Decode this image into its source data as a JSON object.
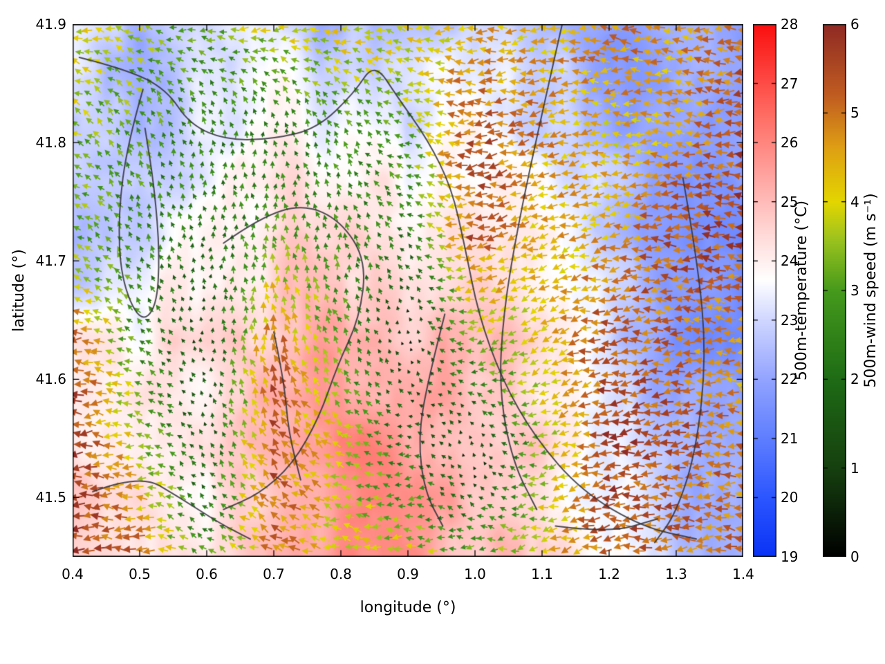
{
  "figure": {
    "xlabel": "longitude (°)",
    "ylabel": "latitude (°)",
    "background": "#ffffff",
    "contour_color": "#34343d"
  },
  "chart_data": {
    "type": "heatmap+quiver+contour",
    "title": "",
    "x_range": [
      0.4,
      1.4
    ],
    "y_range": [
      41.45,
      41.9
    ],
    "x_ticks": [
      "0.4",
      "0.5",
      "0.6",
      "0.7",
      "0.8",
      "0.9",
      "1.0",
      "1.1",
      "1.2",
      "1.3",
      "1.4"
    ],
    "y_ticks": [
      "41.5",
      "41.6",
      "41.7",
      "41.8",
      "41.9"
    ],
    "temperature": {
      "label": "500m-temperature (°C)",
      "units": "°C",
      "range": [
        19,
        28
      ],
      "ticks": [
        19,
        20,
        21,
        22,
        23,
        24,
        25,
        26,
        27,
        28
      ],
      "colormap": [
        [
          0.0,
          "#0932f5"
        ],
        [
          0.11,
          "#2b55ff"
        ],
        [
          0.22,
          "#5d7dff"
        ],
        [
          0.333,
          "#92a3ff"
        ],
        [
          0.444,
          "#cfd6ff"
        ],
        [
          0.52,
          "#ffffff"
        ],
        [
          0.61,
          "#ffd8d6"
        ],
        [
          0.72,
          "#ffa29e"
        ],
        [
          0.833,
          "#ff6b62"
        ],
        [
          1.0,
          "#fa0f0f"
        ]
      ],
      "grid_lat_rows": [
        41.9,
        41.81,
        41.72,
        41.63,
        41.54,
        41.45
      ],
      "grid_lon_cols": [
        0.4,
        0.5,
        0.6,
        0.7,
        0.8,
        0.9,
        1.0,
        1.1,
        1.2,
        1.3,
        1.4
      ],
      "values": [
        [
          23.2,
          22.4,
          23.0,
          23.0,
          22.3,
          23.0,
          22.8,
          22.9,
          21.8,
          22.4,
          21.9
        ],
        [
          22.9,
          22.4,
          23.4,
          23.9,
          23.8,
          23.4,
          23.8,
          23.0,
          22.4,
          22.0,
          21.9
        ],
        [
          22.4,
          23.0,
          23.9,
          24.4,
          24.4,
          23.9,
          24.3,
          23.8,
          22.9,
          21.9,
          21.5
        ],
        [
          23.8,
          23.9,
          24.4,
          24.9,
          25.3,
          24.8,
          25.2,
          24.4,
          22.9,
          21.9,
          21.4
        ],
        [
          24.4,
          23.9,
          24.1,
          25.0,
          25.8,
          25.4,
          25.1,
          24.4,
          23.4,
          22.4,
          21.9
        ],
        [
          24.9,
          24.4,
          24.1,
          25.1,
          25.9,
          25.5,
          25.0,
          24.5,
          23.5,
          22.9,
          22.4
        ]
      ]
    },
    "wind": {
      "label": "500m-wind speed (m s⁻¹)",
      "units": "m s⁻¹",
      "range": [
        0,
        6
      ],
      "ticks": [
        0,
        1,
        2,
        3,
        4,
        5,
        6
      ],
      "colormap": [
        [
          0.0,
          "#000000"
        ],
        [
          0.167,
          "#16400f"
        ],
        [
          0.333,
          "#1e6b15"
        ],
        [
          0.5,
          "#459a1c"
        ],
        [
          0.6,
          "#9fc41d"
        ],
        [
          0.667,
          "#e3d600"
        ],
        [
          0.767,
          "#dfa013"
        ],
        [
          0.867,
          "#c05c20"
        ],
        [
          1.0,
          "#8f2a24"
        ]
      ],
      "speed": [
        [
          4.0,
          3.4,
          3.0,
          4.0,
          4.2,
          4.0,
          4.4,
          4.2,
          5.0,
          4.6,
          5.2
        ],
        [
          3.6,
          3.0,
          2.4,
          2.2,
          2.6,
          3.2,
          5.4,
          4.8,
          4.2,
          4.6,
          5.4
        ],
        [
          3.2,
          2.6,
          2.0,
          3.0,
          2.6,
          2.2,
          5.4,
          4.2,
          4.6,
          5.4,
          5.6
        ],
        [
          5.4,
          2.6,
          1.0,
          5.2,
          3.0,
          0.6,
          3.2,
          4.2,
          5.4,
          5.0,
          4.6
        ],
        [
          5.8,
          3.8,
          1.4,
          5.4,
          3.8,
          2.0,
          0.6,
          3.4,
          5.6,
          5.4,
          5.0
        ],
        [
          5.8,
          5.0,
          2.6,
          5.0,
          4.0,
          3.8,
          3.0,
          4.0,
          5.4,
          5.0,
          5.0
        ]
      ],
      "direction_deg_ccw_from_east": [
        [
          170,
          165,
          180,
          190,
          180,
          172,
          182,
          188,
          178,
          172,
          180
        ],
        [
          150,
          120,
          100,
          92,
          120,
          160,
          182,
          190,
          180,
          172,
          180
        ],
        [
          160,
          112,
          90,
          92,
          100,
          140,
          190,
          200,
          190,
          180,
          172
        ],
        [
          180,
          150,
          95,
          100,
          120,
          95,
          200,
          210,
          190,
          180,
          172
        ],
        [
          184,
          170,
          120,
          130,
          160,
          180,
          95,
          200,
          190,
          182,
          176
        ],
        [
          180,
          176,
          150,
          160,
          170,
          180,
          190,
          200,
          186,
          180,
          176
        ]
      ]
    },
    "contours": [
      [
        [
          0.41,
          41.872
        ],
        [
          0.48,
          41.862
        ],
        [
          0.54,
          41.845
        ],
        [
          0.575,
          41.815
        ],
        [
          0.63,
          41.802
        ],
        [
          0.7,
          41.803
        ],
        [
          0.765,
          41.812
        ],
        [
          0.82,
          41.842
        ],
        [
          0.85,
          41.868
        ],
        [
          0.885,
          41.838
        ],
        [
          0.93,
          41.802
        ],
        [
          0.965,
          41.762
        ],
        [
          0.985,
          41.712
        ],
        [
          1.005,
          41.655
        ],
        [
          1.04,
          41.6
        ],
        [
          1.09,
          41.55
        ],
        [
          1.16,
          41.505
        ],
        [
          1.25,
          41.475
        ],
        [
          1.33,
          41.465
        ]
      ],
      [
        [
          0.505,
          41.845
        ],
        [
          0.482,
          41.8
        ],
        [
          0.468,
          41.74
        ],
        [
          0.472,
          41.685
        ],
        [
          0.5,
          41.648
        ],
        [
          0.525,
          41.66
        ],
        [
          0.53,
          41.705
        ],
        [
          0.522,
          41.762
        ],
        [
          0.508,
          41.812
        ]
      ],
      [
        [
          0.625,
          41.715
        ],
        [
          0.68,
          41.737
        ],
        [
          0.745,
          41.748
        ],
        [
          0.8,
          41.734
        ],
        [
          0.838,
          41.7
        ],
        [
          0.828,
          41.652
        ],
        [
          0.795,
          41.612
        ],
        [
          0.768,
          41.568
        ],
        [
          0.728,
          41.528
        ],
        [
          0.678,
          41.503
        ],
        [
          0.625,
          41.49
        ]
      ],
      [
        [
          1.13,
          41.9
        ],
        [
          1.098,
          41.82
        ],
        [
          1.064,
          41.73
        ],
        [
          1.042,
          41.655
        ],
        [
          1.036,
          41.59
        ],
        [
          1.056,
          41.53
        ],
        [
          1.092,
          41.49
        ]
      ],
      [
        [
          1.31,
          41.77
        ],
        [
          1.332,
          41.7
        ],
        [
          1.345,
          41.62
        ],
        [
          1.33,
          41.54
        ],
        [
          1.3,
          41.487
        ],
        [
          1.268,
          41.462
        ]
      ],
      [
        [
          0.43,
          41.505
        ],
        [
          0.5,
          41.52
        ],
        [
          0.56,
          41.5
        ],
        [
          0.62,
          41.478
        ],
        [
          0.665,
          41.465
        ]
      ],
      [
        [
          0.955,
          41.655
        ],
        [
          0.93,
          41.6
        ],
        [
          0.915,
          41.55
        ],
        [
          0.925,
          41.505
        ],
        [
          0.952,
          41.476
        ]
      ],
      [
        [
          1.12,
          41.476
        ],
        [
          1.2,
          41.47
        ],
        [
          1.272,
          41.482
        ]
      ],
      [
        [
          0.7,
          41.64
        ],
        [
          0.715,
          41.6
        ],
        [
          0.722,
          41.555
        ],
        [
          0.74,
          41.515
        ]
      ]
    ]
  }
}
